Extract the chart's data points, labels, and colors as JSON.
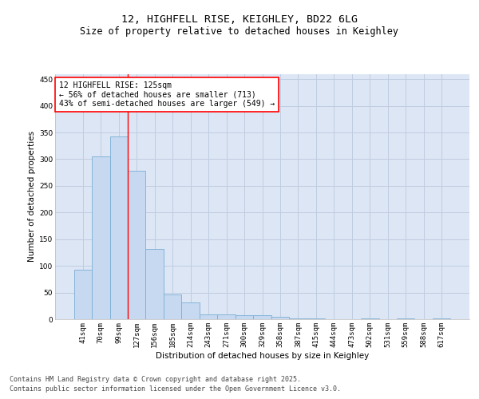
{
  "title_line1": "12, HIGHFELL RISE, KEIGHLEY, BD22 6LG",
  "title_line2": "Size of property relative to detached houses in Keighley",
  "xlabel": "Distribution of detached houses by size in Keighley",
  "ylabel": "Number of detached properties",
  "categories": [
    "41sqm",
    "70sqm",
    "99sqm",
    "127sqm",
    "156sqm",
    "185sqm",
    "214sqm",
    "243sqm",
    "271sqm",
    "300sqm",
    "329sqm",
    "358sqm",
    "387sqm",
    "415sqm",
    "444sqm",
    "473sqm",
    "502sqm",
    "531sqm",
    "559sqm",
    "588sqm",
    "617sqm"
  ],
  "values": [
    93,
    305,
    343,
    278,
    132,
    47,
    31,
    9,
    9,
    8,
    7,
    4,
    1,
    1,
    0,
    0,
    1,
    0,
    1,
    0,
    1
  ],
  "bar_color": "#c6d9f0",
  "bar_edge_color": "#7bafd4",
  "vline_x": 2.5,
  "annotation_text": "12 HIGHFELL RISE: 125sqm\n← 56% of detached houses are smaller (713)\n43% of semi-detached houses are larger (549) →",
  "annotation_box_color": "white",
  "annotation_box_edge_color": "red",
  "vline_color": "red",
  "ylim": [
    0,
    460
  ],
  "yticks": [
    0,
    50,
    100,
    150,
    200,
    250,
    300,
    350,
    400,
    450
  ],
  "grid_color": "#c0cce0",
  "background_color": "#dce6f5",
  "footnote_line1": "Contains HM Land Registry data © Crown copyright and database right 2025.",
  "footnote_line2": "Contains public sector information licensed under the Open Government Licence v3.0.",
  "title_fontsize": 9.5,
  "subtitle_fontsize": 8.5,
  "axis_label_fontsize": 7.5,
  "tick_fontsize": 6.5,
  "annotation_fontsize": 7,
  "footnote_fontsize": 6
}
